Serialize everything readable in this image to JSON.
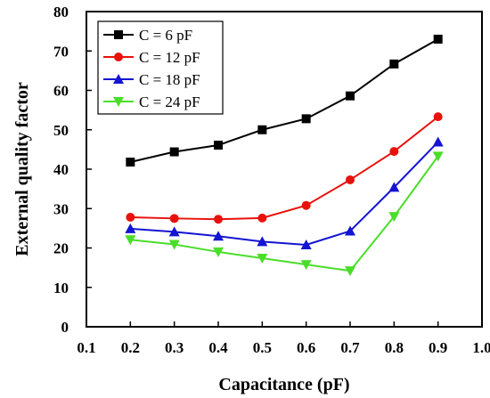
{
  "chart_data": {
    "type": "line",
    "title": "",
    "xlabel": "Capacitance (pF)",
    "ylabel": "External quality factor",
    "xlim": [
      0.1,
      1.0
    ],
    "ylim": [
      0,
      80
    ],
    "x_ticks": [
      "0.1",
      "0.2",
      "0.3",
      "0.4",
      "0.5",
      "0.6",
      "0.7",
      "0.8",
      "0.9",
      "1.0"
    ],
    "y_ticks": [
      "0",
      "10",
      "20",
      "30",
      "40",
      "50",
      "60",
      "70",
      "80"
    ],
    "grid": false,
    "legend_position": "top-left",
    "x": [
      0.2,
      0.3,
      0.4,
      0.5,
      0.6,
      0.7,
      0.8,
      0.9
    ],
    "series": [
      {
        "name": "C = 6 pF",
        "color": "#000000",
        "marker": "square",
        "values": [
          41.8,
          44.4,
          46.1,
          50.0,
          52.8,
          58.6,
          66.7,
          73.0
        ]
      },
      {
        "name": "C = 12 pF",
        "color": "#e8120c",
        "marker": "circle",
        "values": [
          27.8,
          27.5,
          27.3,
          27.6,
          30.8,
          37.3,
          44.5,
          53.3
        ]
      },
      {
        "name": "C = 18 pF",
        "color": "#1414d4",
        "marker": "triangle-up",
        "values": [
          24.9,
          24.1,
          23.0,
          21.6,
          20.8,
          24.3,
          35.4,
          46.9
        ]
      },
      {
        "name": "C = 24 pF",
        "color": "#4ade2a",
        "marker": "triangle-down",
        "values": [
          22.1,
          20.9,
          19.0,
          17.4,
          15.8,
          14.2,
          28.0,
          43.3
        ]
      }
    ]
  }
}
